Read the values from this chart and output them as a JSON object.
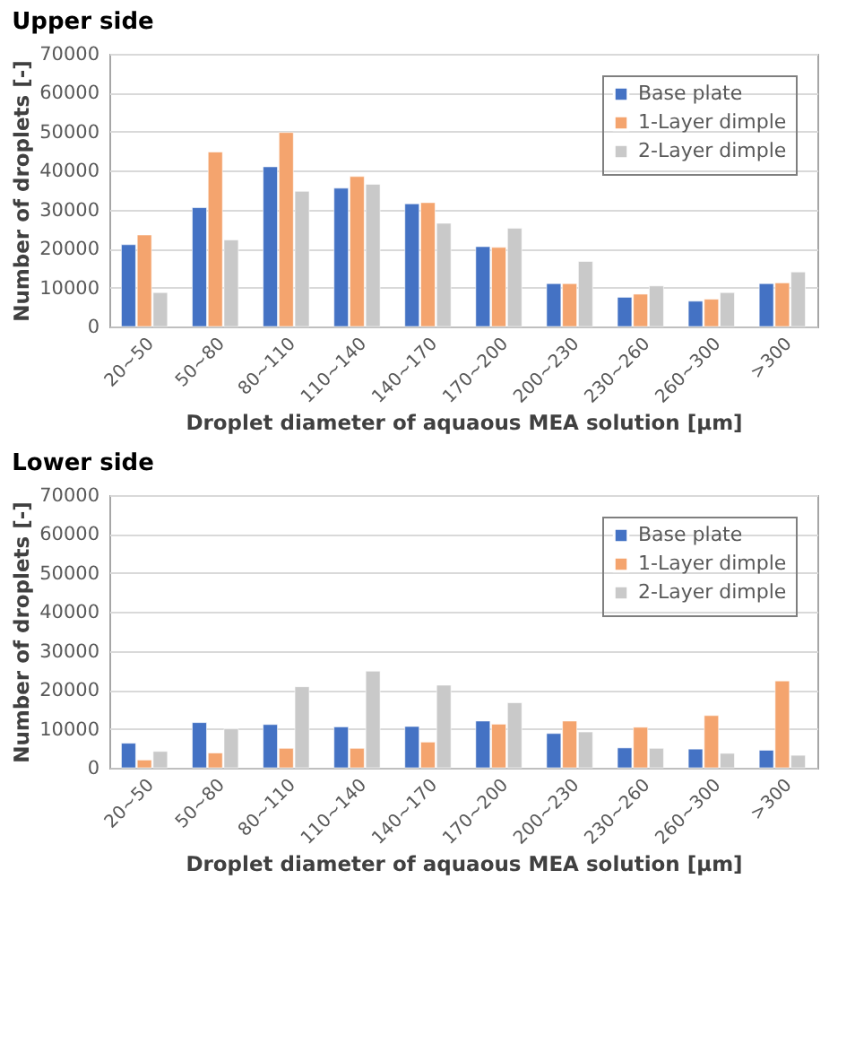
{
  "chart_data": [
    {
      "type": "bar",
      "title": "Upper side",
      "xlabel": "Droplet diameter of aquaous MEA solution [µm]",
      "ylabel": "Number of droplets [-]",
      "categories": [
        "20~50",
        "50~80",
        "80~110",
        "110~140",
        "140~170",
        "170~200",
        "200~230",
        "230~260",
        "260~300",
        ">300"
      ],
      "series": [
        {
          "name": "Base plate",
          "color": "#4472c4",
          "values": [
            21000,
            30500,
            41000,
            35500,
            31500,
            20500,
            11000,
            7500,
            6500,
            11000
          ]
        },
        {
          "name": "1-Layer dimple",
          "color": "#f4a46e",
          "values": [
            23500,
            44800,
            49800,
            38500,
            31800,
            20300,
            11000,
            8300,
            7000,
            11200
          ]
        },
        {
          "name": "2-Layer dimple",
          "color": "#c9c9c9",
          "values": [
            8700,
            22200,
            34700,
            36500,
            26500,
            25200,
            16700,
            10400,
            8700,
            14000
          ]
        }
      ],
      "ylim": [
        0,
        70000
      ],
      "yticks": [
        0,
        10000,
        20000,
        30000,
        40000,
        50000,
        60000,
        70000
      ],
      "grid": "y",
      "legend": "top right"
    },
    {
      "type": "bar",
      "title": "Lower side",
      "xlabel": "Droplet diameter of aquaous MEA solution [µm]",
      "ylabel": "Number of droplets [-]",
      "categories": [
        "20~50",
        "50~80",
        "80~110",
        "110~140",
        "140~170",
        "170~200",
        "200~230",
        "230~260",
        "260~300",
        ">300"
      ],
      "series": [
        {
          "name": "Base plate",
          "color": "#4472c4",
          "values": [
            6300,
            11600,
            11100,
            10500,
            10600,
            12000,
            8800,
            5100,
            4800,
            4500
          ]
        },
        {
          "name": "1-Layer dimple",
          "color": "#f4a46e",
          "values": [
            2000,
            3800,
            5000,
            5000,
            6600,
            11200,
            12000,
            10400,
            13400,
            22300
          ]
        },
        {
          "name": "2-Layer dimple",
          "color": "#c9c9c9",
          "values": [
            4200,
            10000,
            20800,
            24800,
            21200,
            16700,
            9200,
            5000,
            3700,
            3200
          ]
        }
      ],
      "ylim": [
        0,
        70000
      ],
      "yticks": [
        0,
        10000,
        20000,
        30000,
        40000,
        50000,
        60000,
        70000
      ],
      "grid": "y",
      "legend": "top right"
    }
  ]
}
